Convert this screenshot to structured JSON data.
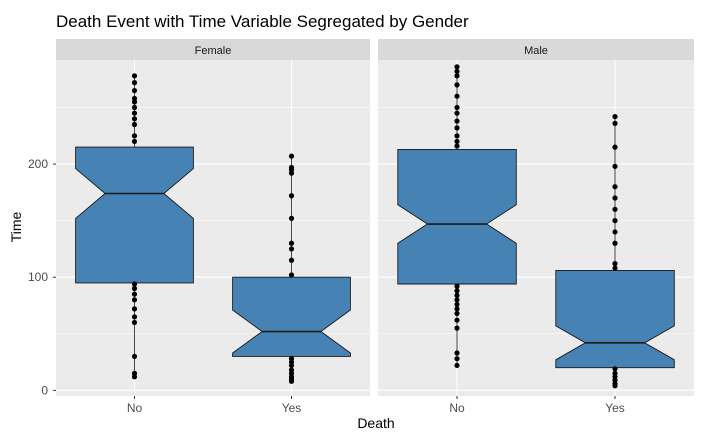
{
  "chart_data": {
    "type": "boxplot",
    "notched": true,
    "title": "Death Event with Time Variable Segregated by Gender",
    "xlabel": "Death",
    "ylabel": "Time",
    "categories": [
      "No",
      "Yes"
    ],
    "ylim": [
      -5,
      292
    ],
    "yticks": [
      0,
      100,
      200
    ],
    "grid": true,
    "colors": {
      "box_fill": "#4682b4",
      "box_stroke": "#1a1a1a",
      "outlier": "#000000",
      "panel_bg": "#ebebeb",
      "strip_bg": "#d9d9d9",
      "grid": "#ffffff"
    },
    "panels": [
      {
        "label": "Female",
        "boxes": [
          {
            "category": "No",
            "min": 95,
            "q1": 95,
            "median": 174,
            "q3": 215,
            "max": 215,
            "notch_low": 152,
            "notch_high": 196,
            "outliers": [
              278,
              272,
              265,
              258,
              255,
              250,
              245,
              240,
              235,
              225,
              220,
              94,
              90,
              85,
              80,
              72,
              65,
              60,
              30,
              15,
              12
            ]
          },
          {
            "category": "Yes",
            "min": 30,
            "q1": 30,
            "median": 52,
            "q3": 100,
            "max": 100,
            "notch_low": 33,
            "notch_high": 71,
            "outliers": [
              207,
              197,
              195,
              192,
              172,
              152,
              130,
              125,
              115,
              102,
              28,
              25,
              22,
              18,
              15,
              12,
              10,
              8
            ]
          }
        ]
      },
      {
        "label": "Male",
        "boxes": [
          {
            "category": "No",
            "min": 94,
            "q1": 94,
            "median": 147,
            "q3": 213,
            "max": 213,
            "notch_low": 130,
            "notch_high": 164,
            "outliers": [
              286,
              282,
              278,
              270,
              260,
              250,
              245,
              238,
              232,
              225,
              220,
              216,
              92,
              88,
              84,
              80,
              76,
              72,
              68,
              62,
              55,
              33,
              28,
              22
            ]
          },
          {
            "category": "Yes",
            "min": 20,
            "q1": 20,
            "median": 42,
            "q3": 106,
            "max": 106,
            "notch_low": 27,
            "notch_high": 57,
            "outliers": [
              242,
              236,
              215,
              198,
              180,
              170,
              160,
              150,
              140,
              130,
              112,
              108,
              19,
              15,
              12,
              9,
              6,
              4
            ]
          }
        ]
      }
    ]
  }
}
